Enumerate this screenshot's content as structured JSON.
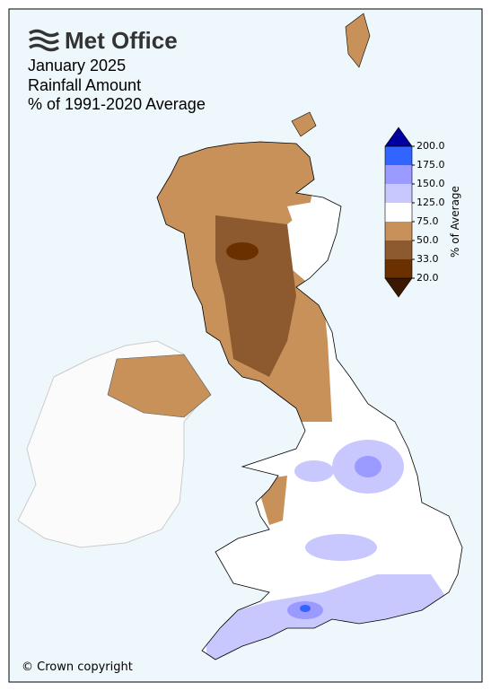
{
  "logo": "Met Office",
  "title": [
    "January 2025",
    "Rainfall Amount",
    "% of 1991-2020 Average"
  ],
  "colorbar": {
    "label": "% of Average",
    "ticks": [
      {
        "value": 20,
        "label": "20.0"
      },
      {
        "value": 33,
        "label": "33.0"
      },
      {
        "value": 50,
        "label": "50.0"
      },
      {
        "value": 75,
        "label": "75.0"
      },
      {
        "value": 125,
        "label": "125.0"
      },
      {
        "value": 150,
        "label": "150.0"
      },
      {
        "value": 175,
        "label": "175.0"
      },
      {
        "value": 200,
        "label": "200.0"
      }
    ],
    "colors": [
      "#3a1800",
      "#6b3000",
      "#8c5a2e",
      "#c8915a",
      "#ffffff",
      "#c8c8ff",
      "#9a9aff",
      "#3264ff",
      "#0000a0"
    ]
  },
  "copyright": "© Crown copyright"
}
